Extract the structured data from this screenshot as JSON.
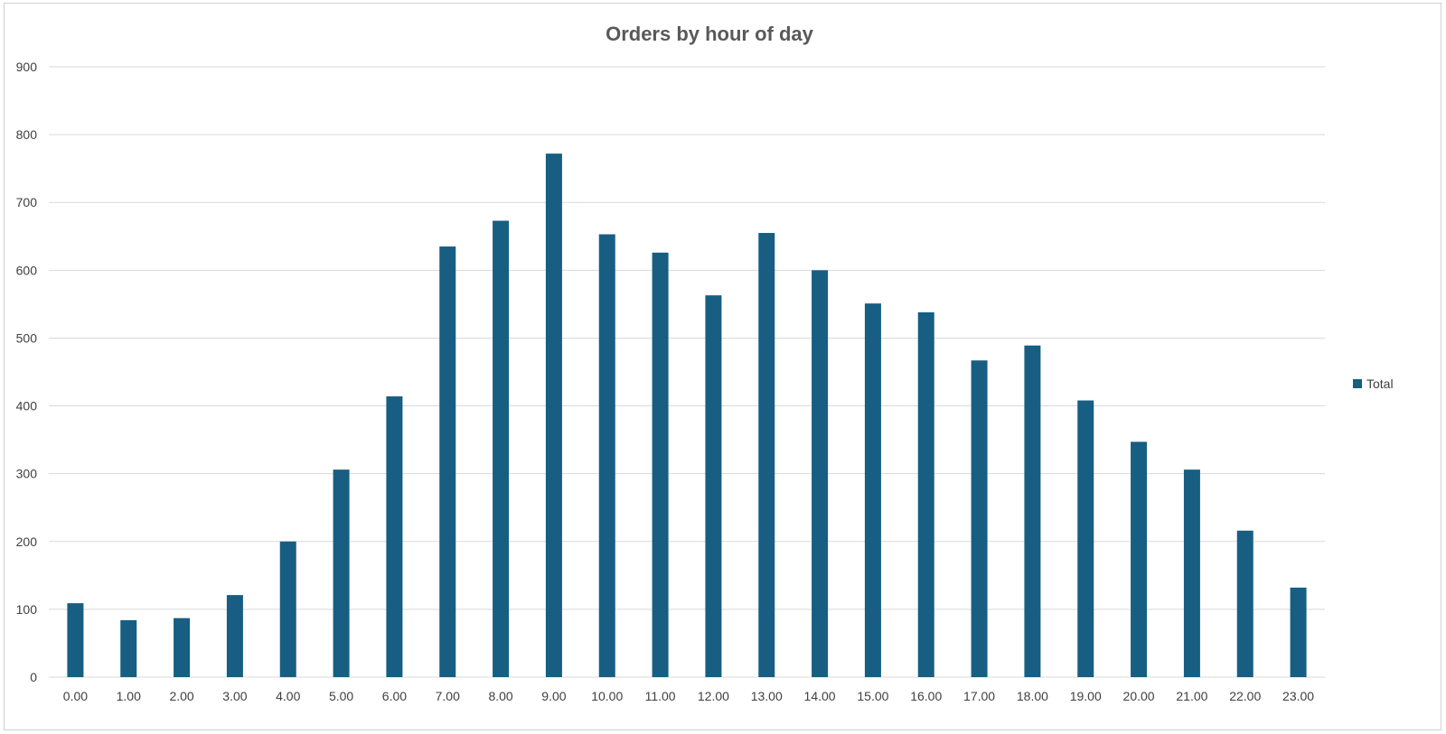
{
  "chart_data": {
    "type": "bar",
    "title": "Orders by hour of day",
    "xlabel": "",
    "ylabel": "",
    "categories": [
      "0.00",
      "1.00",
      "2.00",
      "3.00",
      "4.00",
      "5.00",
      "6.00",
      "7.00",
      "8.00",
      "9.00",
      "10.00",
      "11.00",
      "12.00",
      "13.00",
      "14.00",
      "15.00",
      "16.00",
      "17.00",
      "18.00",
      "19.00",
      "20.00",
      "21.00",
      "22.00",
      "23.00"
    ],
    "series": [
      {
        "name": "Total",
        "color": "#175e82",
        "values": [
          109,
          84,
          87,
          121,
          200,
          306,
          414,
          635,
          673,
          772,
          653,
          626,
          563,
          655,
          600,
          551,
          538,
          467,
          489,
          408,
          347,
          306,
          216,
          132
        ]
      }
    ],
    "ylim": [
      0,
      900
    ],
    "yticks": [
      "0",
      "100",
      "200",
      "300",
      "400",
      "500",
      "600",
      "700",
      "800",
      "900"
    ],
    "grid": true,
    "legend": "right"
  }
}
